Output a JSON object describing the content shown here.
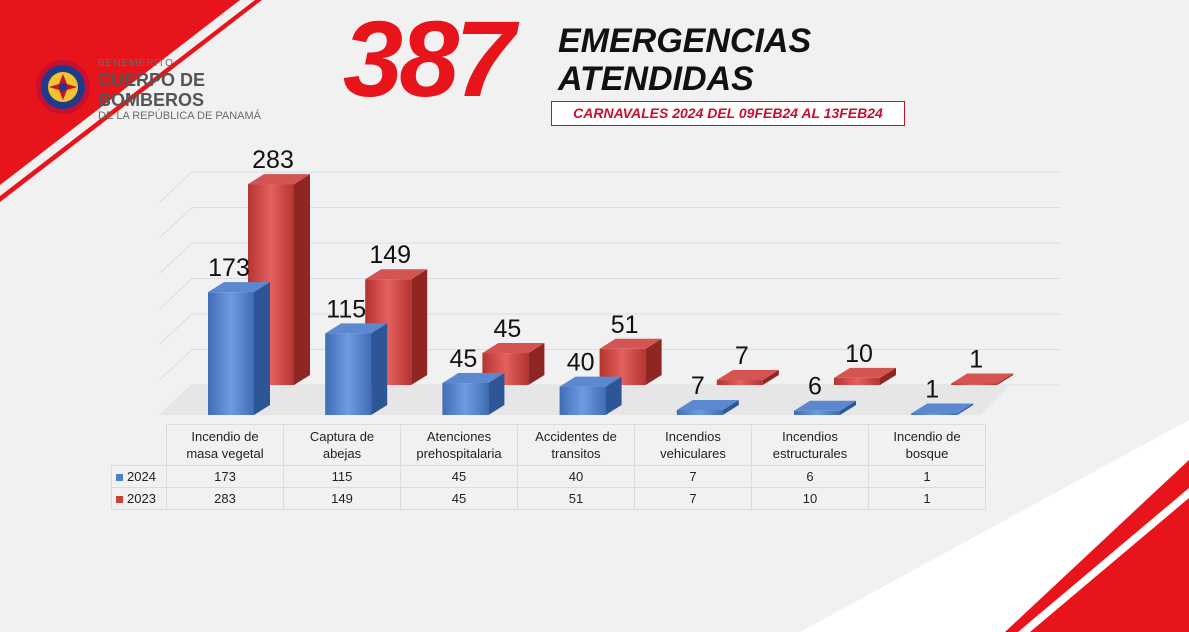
{
  "colors": {
    "accent_red": "#e8141b",
    "series_2024": "#4f7fc7",
    "series_2023": "#c9403d"
  },
  "logo": {
    "icon": "fire-department-badge-icon",
    "line1": "BENEMÉRITO",
    "line2": "CUERPO DE BOMBEROS",
    "line3": "DE LA REPÚBLICA DE PANAMÁ"
  },
  "header": {
    "total": "387",
    "headline_line1": "EMERGENCIAS",
    "headline_line2": "ATENDIDAS",
    "subtitle": "CARNAVALES 2024 DEL 09FEB24 AL 13FEB24"
  },
  "chart_data": {
    "type": "bar",
    "categories": [
      [
        "Incendio de",
        "masa vegetal"
      ],
      [
        "Captura de",
        "abejas"
      ],
      [
        "Atenciones",
        "prehospitalaria"
      ],
      [
        "Accidentes de",
        "transitos"
      ],
      [
        "Incendios",
        "vehiculares"
      ],
      [
        "Incendios",
        "estructurales"
      ],
      [
        "Incendio de",
        "bosque"
      ]
    ],
    "series": [
      {
        "name": "2024",
        "values": [
          173,
          115,
          45,
          40,
          7,
          6,
          1
        ]
      },
      {
        "name": "2023",
        "values": [
          283,
          149,
          45,
          51,
          7,
          10,
          1
        ]
      }
    ],
    "ylim": [
      0,
      300
    ],
    "grid": true,
    "legend": "table"
  }
}
